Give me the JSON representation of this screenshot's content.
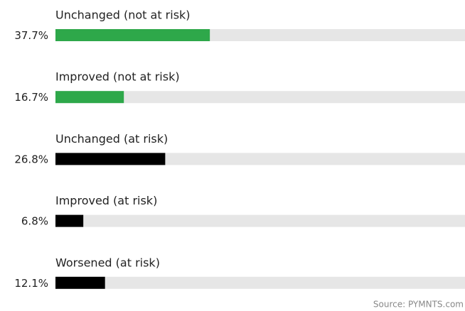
{
  "chart_data": {
    "type": "bar",
    "orientation": "horizontal",
    "categories": [
      "Unchanged (not at risk)",
      "Improved (not at risk)",
      "Unchanged (at risk)",
      "Improved (at risk)",
      "Worsened (at risk)"
    ],
    "values": [
      37.7,
      16.7,
      26.8,
      6.8,
      12.1
    ],
    "value_labels": [
      "37.7%",
      "16.7%",
      "26.8%",
      "6.8%",
      "12.1%"
    ],
    "colors": [
      "#2ea84a",
      "#2ea84a",
      "#000000",
      "#000000",
      "#000000"
    ],
    "track_color": "#e6e6e6",
    "xlim": [
      0,
      100
    ],
    "source": "Source: PYMNTS.com"
  }
}
